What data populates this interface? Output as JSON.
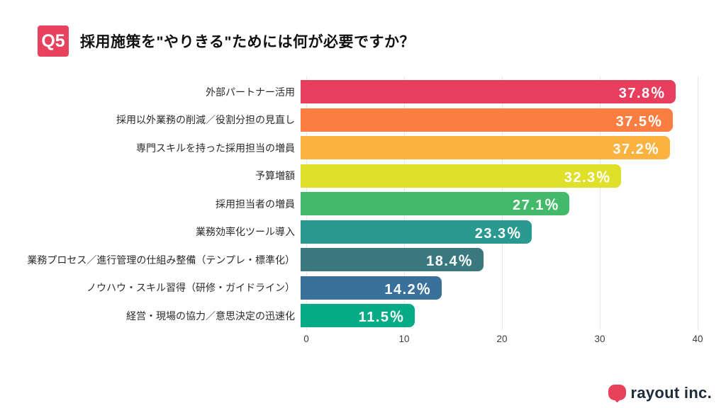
{
  "header": {
    "badge": "Q5",
    "title": "採用施策を\"やりきる\"ためには何が必要ですか？"
  },
  "chart_data": {
    "type": "bar",
    "orientation": "horizontal",
    "title": "採用施策を\"やりきる\"ためには何が必要ですか？",
    "categories": [
      "外部パートナー活用",
      "採用以外業務の削減／役割分担の見直し",
      "専門スキルを持った採用担当の増員",
      "予算増額",
      "採用担当者の増員",
      "業務効率化ツール導入",
      "業務プロセス／進行管理の仕組み整備（テンプレ・標準化）",
      "ノウハウ・スキル習得（研修・ガイドライン）",
      "経営・現場の協力／意思決定の迅速化"
    ],
    "values": [
      37.8,
      37.5,
      37.2,
      32.3,
      27.1,
      23.3,
      18.4,
      14.2,
      11.5
    ],
    "value_labels": [
      "37.8％",
      "37.5％",
      "37.2％",
      "32.3％",
      "27.1％",
      "23.3％",
      "18.4％",
      "14.2％",
      "11.5％"
    ],
    "bar_colors": [
      "#e83e5e",
      "#fa7d41",
      "#fbb23f",
      "#dfe029",
      "#42ba69",
      "#2a9a90",
      "#38787e",
      "#39719b",
      "#04ab85"
    ],
    "xlabel": "",
    "ylabel": "",
    "xlim": [
      0,
      40
    ],
    "x_ticks": [
      "0",
      "10",
      "20",
      "30",
      "40"
    ],
    "grid": true,
    "gridline_color": "#e7e7e7",
    "legend": "none"
  },
  "footer": {
    "logo_text": "rayout inc.",
    "logo_mark_color": "#e8415c"
  },
  "colors": {
    "badge_bg": "#e8425f",
    "background": "#ffffff",
    "title_text": "#111111",
    "label_text": "#2b2b2b",
    "axis_text": "#3d3d3d",
    "value_text": "#ffffff"
  }
}
